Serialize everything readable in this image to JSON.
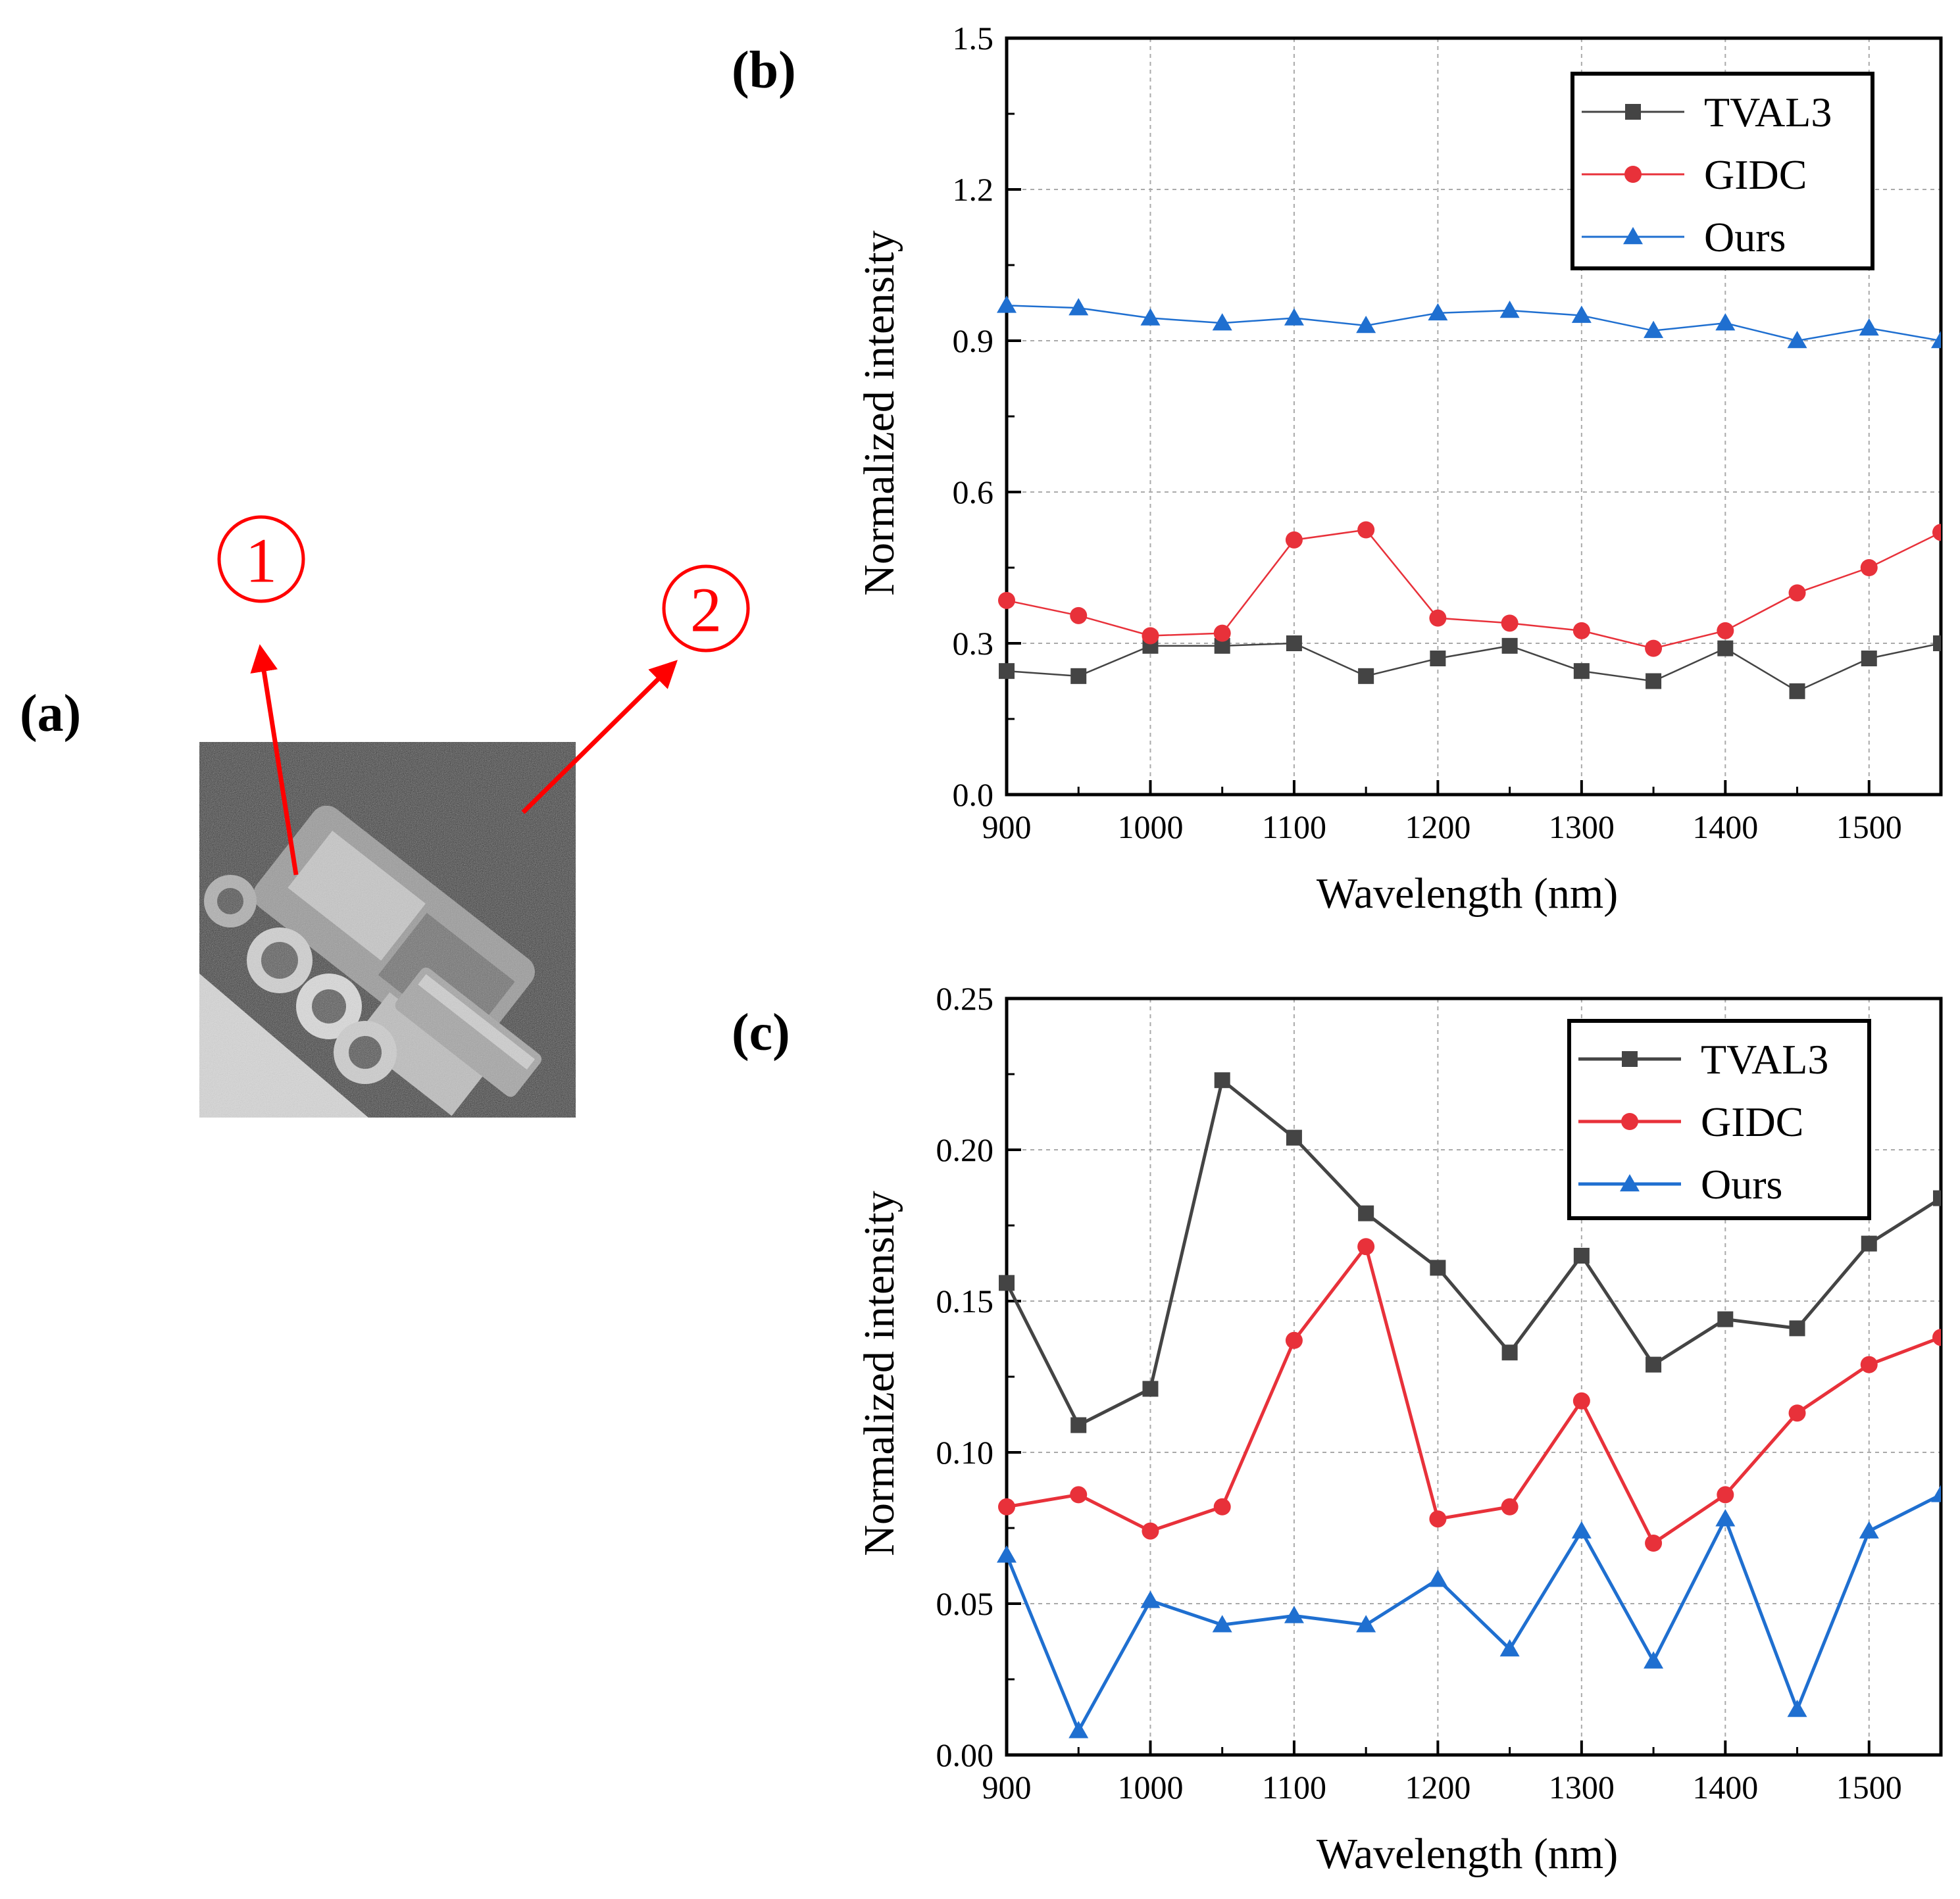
{
  "panels": {
    "a": "(a)",
    "b": "(b)",
    "c": "(c)"
  },
  "photo": {
    "markers": [
      "①",
      "②"
    ],
    "arrow_color": "#ff0000"
  },
  "series_colors": {
    "TVAL3": "#444444",
    "GIDC": "#e8313a",
    "Ours": "#1f6fd0"
  },
  "chart_data": [
    {
      "type": "line",
      "panel": "(b)",
      "xlabel": "Wavelength (nm)",
      "ylabel": "Normalized intensity",
      "xlim": [
        900,
        1550
      ],
      "ylim": [
        0,
        1.5
      ],
      "xticks": [
        900,
        1000,
        1100,
        1200,
        1300,
        1400,
        1500
      ],
      "yticks": [
        "0.0",
        "0.3",
        "0.6",
        "0.9",
        "1.2",
        "1.5"
      ],
      "grid": true,
      "legend": "top-right",
      "x": [
        900,
        950,
        1000,
        1050,
        1100,
        1150,
        1200,
        1250,
        1300,
        1350,
        1400,
        1450,
        1500,
        1550
      ],
      "series": [
        {
          "name": "TVAL3",
          "marker": "square",
          "values": [
            0.245,
            0.235,
            0.295,
            0.295,
            0.3,
            0.235,
            0.27,
            0.295,
            0.245,
            0.225,
            0.29,
            0.205,
            0.27,
            0.3
          ]
        },
        {
          "name": "GIDC",
          "marker": "circle",
          "values": [
            0.385,
            0.355,
            0.315,
            0.32,
            0.505,
            0.525,
            0.35,
            0.34,
            0.325,
            0.29,
            0.325,
            0.4,
            0.45,
            0.52
          ]
        },
        {
          "name": "Ours",
          "marker": "triangle",
          "values": [
            0.97,
            0.965,
            0.945,
            0.935,
            0.945,
            0.93,
            0.955,
            0.96,
            0.95,
            0.92,
            0.935,
            0.9,
            0.925,
            0.9
          ]
        }
      ]
    },
    {
      "type": "line",
      "panel": "(c)",
      "xlabel": "Wavelength (nm)",
      "ylabel": "Normalized intensity",
      "xlim": [
        900,
        1550
      ],
      "ylim": [
        0,
        0.25
      ],
      "xticks": [
        900,
        1000,
        1100,
        1200,
        1300,
        1400,
        1500
      ],
      "yticks": [
        "0.00",
        "0.05",
        "0.10",
        "0.15",
        "0.20",
        "0.25"
      ],
      "grid": true,
      "legend": "top-right",
      "x": [
        900,
        950,
        1000,
        1050,
        1100,
        1150,
        1200,
        1250,
        1300,
        1350,
        1400,
        1450,
        1500,
        1550
      ],
      "series": [
        {
          "name": "TVAL3",
          "marker": "square",
          "values": [
            0.156,
            0.109,
            0.121,
            0.223,
            0.204,
            0.179,
            0.161,
            0.133,
            0.165,
            0.129,
            0.144,
            0.141,
            0.169,
            0.184
          ]
        },
        {
          "name": "GIDC",
          "marker": "circle",
          "values": [
            0.082,
            0.086,
            0.074,
            0.082,
            0.137,
            0.168,
            0.078,
            0.082,
            0.117,
            0.07,
            0.086,
            0.113,
            0.129,
            0.138
          ]
        },
        {
          "name": "Ours",
          "marker": "triangle",
          "values": [
            0.066,
            0.008,
            0.051,
            0.043,
            0.046,
            0.043,
            0.058,
            0.035,
            0.074,
            0.031,
            0.078,
            0.015,
            0.074,
            0.086
          ]
        }
      ]
    }
  ]
}
